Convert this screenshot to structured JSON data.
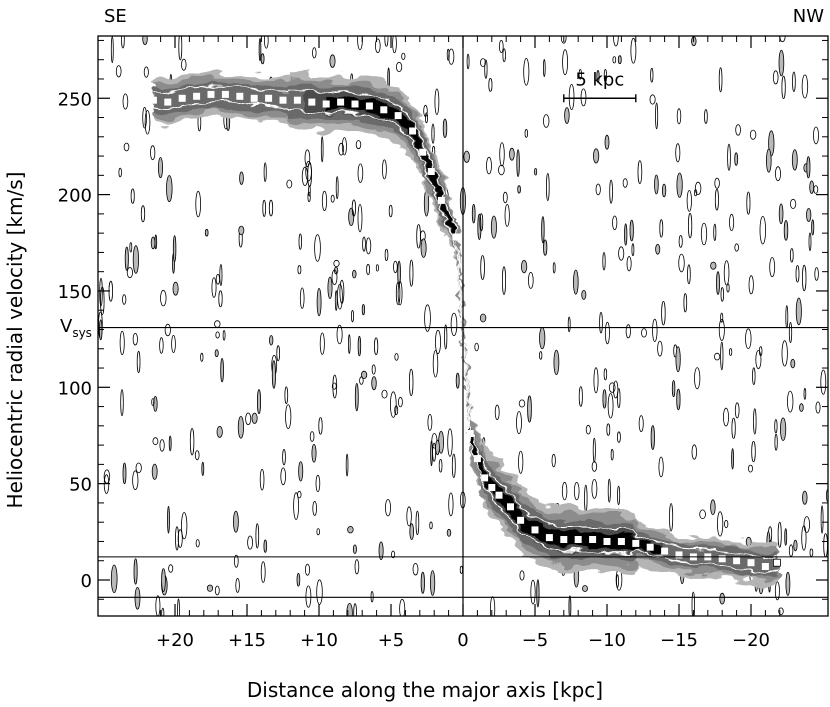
{
  "chart_data": {
    "type": "contour",
    "xlabel": "Distance along the major axis [kpc]",
    "ylabel": "Heliocentric radial velocity [km/s]",
    "xlim": [
      22,
      -22
    ],
    "ylim": [
      -18,
      282
    ],
    "x_ticks": [
      20,
      15,
      10,
      5,
      0,
      -5,
      -10,
      -15,
      -20
    ],
    "x_tick_labels": [
      "+20",
      "+15",
      "+10",
      "+5",
      "0",
      "−5",
      "−10",
      "−15",
      "−20"
    ],
    "y_ticks": [
      0,
      50,
      100,
      150,
      200,
      250
    ],
    "y_tick_labels": [
      "0",
      "50",
      "100",
      "150",
      "200",
      "250"
    ],
    "corner_labels": {
      "left": "SE",
      "right": "NW"
    },
    "reference_lines": {
      "v_sys": {
        "value": 131,
        "label_main": "V",
        "label_sub": "sys"
      },
      "upper_band": 12,
      "lower_band": -9,
      "x_zero": 0
    },
    "scale_bar": {
      "label": "5 kpc",
      "length_kpc": 5,
      "velocity": 250,
      "x_start": -7
    },
    "rotation_curve": {
      "x": [
        21.5,
        20.5,
        19.5,
        18.5,
        17.5,
        16.5,
        15.5,
        14.5,
        13.5,
        12.5,
        11.5,
        10.5,
        9.5,
        8.5,
        7.5,
        6.5,
        5.5,
        4.5,
        3.5,
        2.8,
        2.2,
        1.5,
        0.5,
        -0.5,
        -1.0,
        -1.5,
        -2.0,
        -2.5,
        -3.3,
        -4.0,
        -5.0,
        -6.0,
        -7.0,
        -8.0,
        -9.0,
        -10.0,
        -11.0,
        -12.0,
        -13.0,
        -14.0,
        -15.0,
        -16.0,
        -17.0,
        -18.0,
        -19.0,
        -20.0,
        -21.0,
        -21.8
      ],
      "v": [
        249,
        248,
        250,
        251,
        252,
        252,
        251,
        250,
        250,
        249,
        249,
        248,
        247,
        248,
        247,
        246,
        244,
        241,
        233,
        222,
        212,
        197,
        178,
        76,
        63,
        53,
        48,
        44,
        38,
        31,
        26,
        22,
        21,
        21,
        21,
        20,
        20,
        19,
        17,
        15,
        13,
        12,
        12,
        11,
        10,
        9,
        7,
        9
      ]
    },
    "contour_levels": 5,
    "grid": false,
    "legend": "none"
  }
}
